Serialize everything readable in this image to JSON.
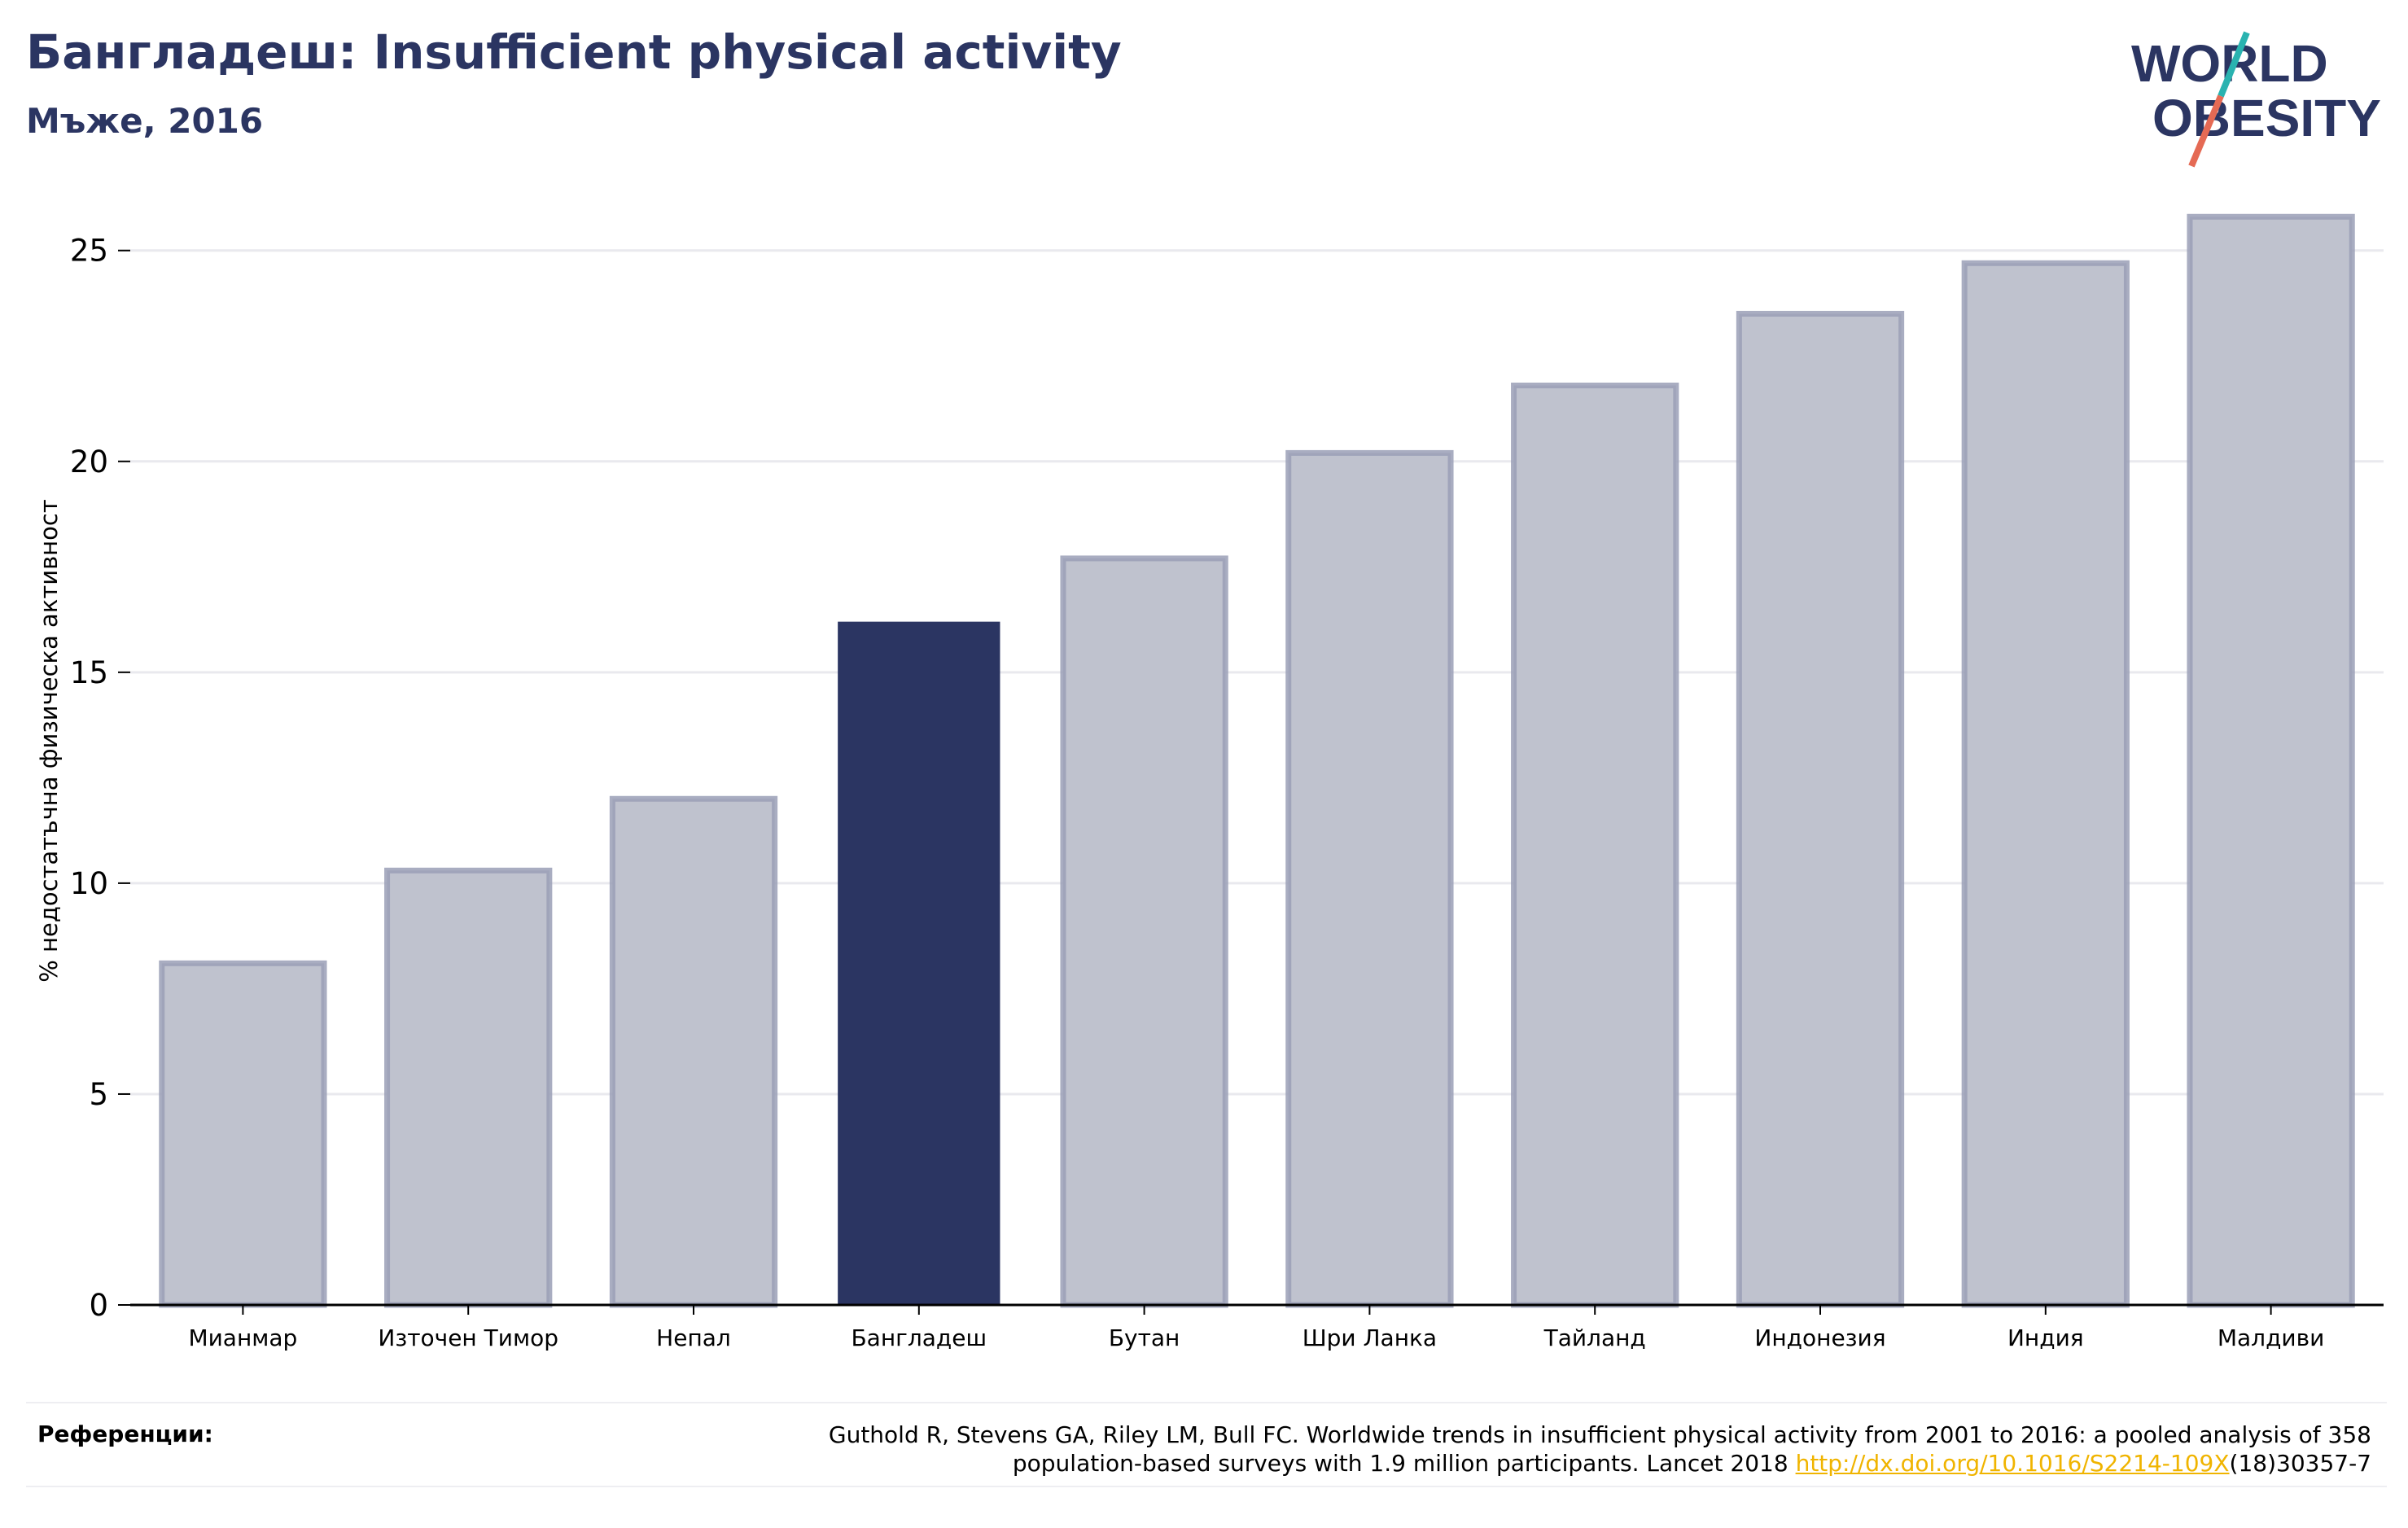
{
  "header": {
    "title": "Бангладеш: Insufficient physical activity",
    "subtitle": "Мъже, 2016"
  },
  "logo": {
    "line1": "WORLD",
    "line2": "OBESITY",
    "slash_colors": [
      "#2ab3b0",
      "#e56a54"
    ],
    "text_color": "#2b3562"
  },
  "chart_data": {
    "type": "bar",
    "categories": [
      "Мианмар",
      "Източен Тимор",
      "Непал",
      "Бангладеш",
      "Бутан",
      "Шри Ланка",
      "Тайланд",
      "Индонезия",
      "Индия",
      "Малдиви"
    ],
    "values": [
      8.1,
      10.3,
      12.0,
      16.2,
      17.7,
      20.2,
      21.8,
      23.5,
      24.7,
      25.8
    ],
    "highlight_index": 3,
    "highlight_color": "#2b3562",
    "bar_color": "#bfc2ce",
    "bar_edge_color": "#9a9fb6",
    "title": "",
    "xlabel": "",
    "ylabel": "% недостатъчна физическа активност",
    "ylim": [
      0,
      26.5
    ],
    "yticks": [
      0,
      5,
      10,
      15,
      20,
      25
    ],
    "grid": true,
    "legend": "none"
  },
  "references": {
    "label": "Референции:",
    "text_before": "Guthold R, Stevens GA, Riley LM, Bull FC. Worldwide trends in insufficient physical activity from 2001 to 2016: a pooled analysis of 358",
    "text_line2_before": "population-based surveys with 1.9 million participants. Lancet 2018 ",
    "link": "http://dx.doi.org/10.1016/S2214-109X",
    "text_after": "(18)30357-7"
  }
}
